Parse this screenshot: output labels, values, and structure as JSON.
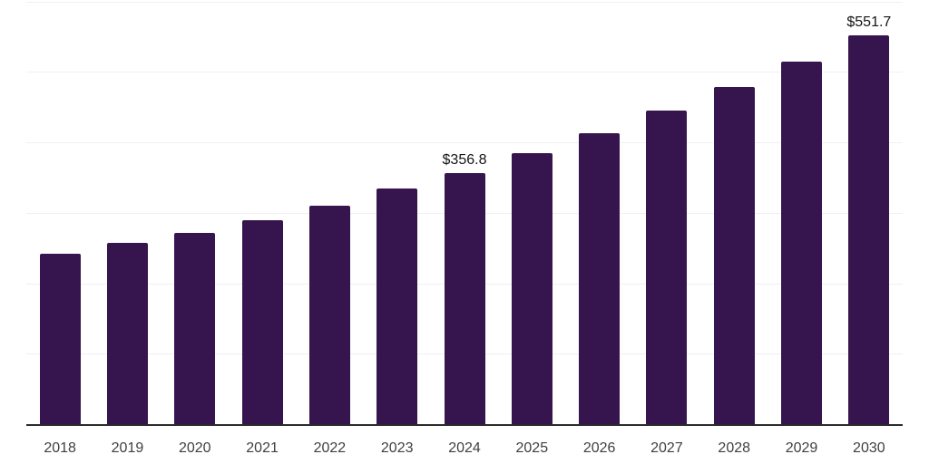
{
  "chart_data": {
    "type": "bar",
    "title": "",
    "xlabel": "",
    "ylabel": "",
    "categories": [
      "2018",
      "2019",
      "2020",
      "2021",
      "2022",
      "2023",
      "2024",
      "2025",
      "2026",
      "2027",
      "2028",
      "2029",
      "2030"
    ],
    "values": [
      241.5,
      257.0,
      271.2,
      289.6,
      310.3,
      334.4,
      356.8,
      384.2,
      413.2,
      445.4,
      479.0,
      515.1,
      551.7
    ],
    "annotations": [
      {
        "index": 6,
        "category": "2024",
        "text": "$356.8"
      },
      {
        "index": 12,
        "category": "2030",
        "text": "$551.7"
      }
    ],
    "value_prefix": "$",
    "ylim": [
      0,
      600
    ],
    "grid_step": 100,
    "grid": true,
    "legend": false,
    "colors": {
      "bar": "#36154E",
      "axis": "#2b2b2b",
      "gridline": "#f0f0f0",
      "value_label": "#141414",
      "tick_label": "#3f3f3f",
      "background": "#ffffff"
    }
  }
}
